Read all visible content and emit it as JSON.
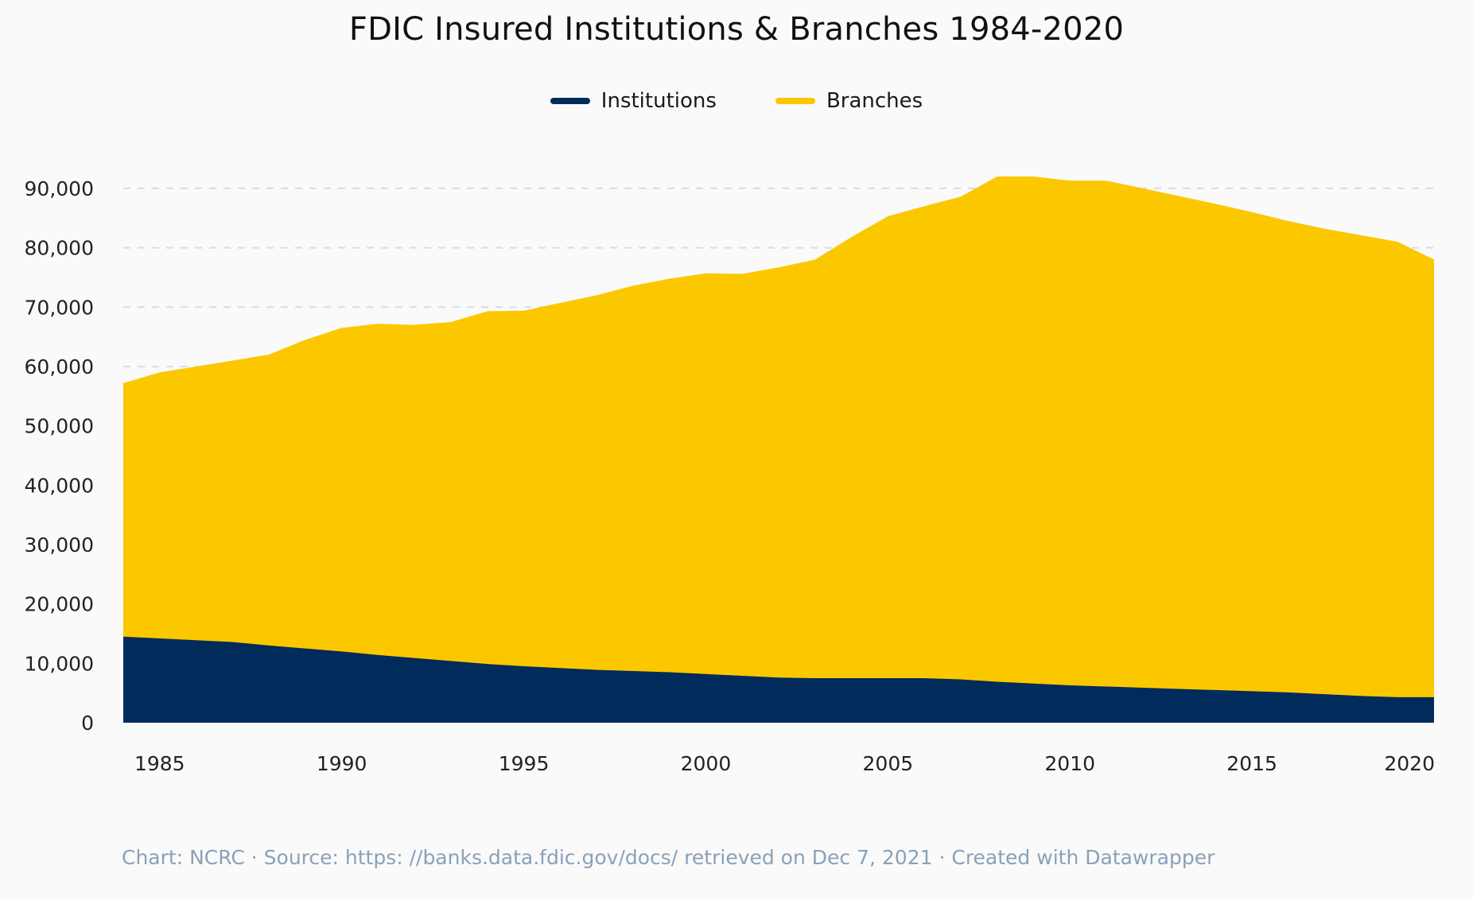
{
  "chart_data": {
    "type": "area",
    "stacked": true,
    "title": "FDIC Insured Institutions & Branches 1984-2020",
    "xlabel": "",
    "ylabel": "",
    "x": [
      1984,
      1985,
      1986,
      1987,
      1988,
      1989,
      1990,
      1991,
      1992,
      1993,
      1994,
      1995,
      1996,
      1997,
      1998,
      1999,
      2000,
      2001,
      2002,
      2003,
      2004,
      2005,
      2006,
      2007,
      2008,
      2009,
      2010,
      2011,
      2012,
      2013,
      2014,
      2015,
      2016,
      2017,
      2018,
      2019,
      2020
    ],
    "xlim": [
      1984,
      2020
    ],
    "xticks": [
      "1985",
      "1990",
      "1995",
      "2000",
      "2005",
      "2010",
      "2015",
      "2020"
    ],
    "ylim": [
      0,
      92000
    ],
    "yticks": [
      "0",
      "10,000",
      "20,000",
      "30,000",
      "40,000",
      "50,000",
      "60,000",
      "70,000",
      "80,000",
      "90,000"
    ],
    "grid": true,
    "legend_position": "top-center",
    "series": [
      {
        "name": "Institutions",
        "color": "#002b5b",
        "values": [
          14500,
          14200,
          13900,
          13600,
          13000,
          12500,
          12000,
          11400,
          10900,
          10400,
          9900,
          9500,
          9200,
          8900,
          8700,
          8500,
          8200,
          7900,
          7600,
          7500,
          7500,
          7500,
          7500,
          7300,
          6900,
          6600,
          6300,
          6100,
          5900,
          5700,
          5500,
          5300,
          5100,
          4800,
          4500,
          4300,
          4300
        ]
      },
      {
        "name": "Branches",
        "color": "#fbc800",
        "top": [
          57200,
          59000,
          60000,
          61000,
          62000,
          64500,
          66500,
          67200,
          67000,
          67500,
          69300,
          69400,
          70700,
          72000,
          73600,
          74800,
          75700,
          75600,
          76700,
          78000,
          81800,
          85300,
          87000,
          88600,
          92000,
          92000,
          91300,
          91300,
          90000,
          88700,
          87400,
          86000,
          84500,
          83200,
          82100,
          81000,
          78000
        ]
      }
    ]
  },
  "footer": "Chart: NCRC · Source: https: //banks.data.fdic.gov/docs/ retrieved on Dec 7, 2021 · Created with Datawrapper"
}
